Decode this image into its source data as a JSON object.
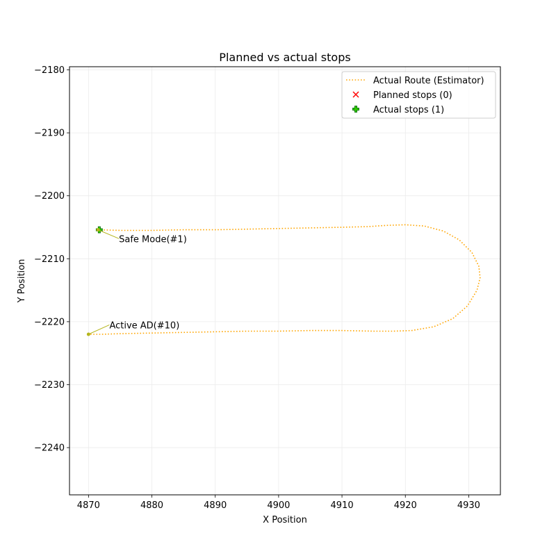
{
  "chart_data": {
    "type": "line",
    "title": "Planned vs actual stops",
    "xlabel": "X Position",
    "ylabel": "Y Position",
    "xlim": [
      4867,
      4935
    ],
    "ylim": [
      -2247.5,
      -2179.5
    ],
    "xticks": [
      4870,
      4880,
      4890,
      4900,
      4910,
      4920,
      4930
    ],
    "yticks": [
      -2180,
      -2190,
      -2200,
      -2210,
      -2220,
      -2230,
      -2240
    ],
    "grid": true,
    "legend_position": "upper right",
    "series": [
      {
        "name": "Actual Route (Estimator)",
        "style": "dotted",
        "color": "#ffa500",
        "points": [
          [
            4871.5,
            -2205.4
          ],
          [
            4875,
            -2205.5
          ],
          [
            4880,
            -2205.5
          ],
          [
            4885,
            -2205.4
          ],
          [
            4890,
            -2205.4
          ],
          [
            4895,
            -2205.3
          ],
          [
            4900,
            -2205.2
          ],
          [
            4905,
            -2205.1
          ],
          [
            4910,
            -2205.0
          ],
          [
            4914,
            -2204.9
          ],
          [
            4917,
            -2204.7
          ],
          [
            4920,
            -2204.6
          ],
          [
            4923,
            -2204.8
          ],
          [
            4926,
            -2205.6
          ],
          [
            4928.5,
            -2207.0
          ],
          [
            4930.5,
            -2209.0
          ],
          [
            4931.6,
            -2211.2
          ],
          [
            4931.8,
            -2213.0
          ],
          [
            4931.3,
            -2215.0
          ],
          [
            4929.8,
            -2217.5
          ],
          [
            4927.5,
            -2219.5
          ],
          [
            4924.5,
            -2220.8
          ],
          [
            4921,
            -2221.4
          ],
          [
            4918,
            -2221.5
          ],
          [
            4915,
            -2221.5
          ],
          [
            4910,
            -2221.4
          ],
          [
            4905,
            -2221.4
          ],
          [
            4900,
            -2221.5
          ],
          [
            4895,
            -2221.5
          ],
          [
            4890,
            -2221.6
          ],
          [
            4885,
            -2221.7
          ],
          [
            4880,
            -2221.8
          ],
          [
            4875,
            -2221.9
          ],
          [
            4872,
            -2222.0
          ],
          [
            4870,
            -2222.0
          ]
        ]
      },
      {
        "name": "Planned stops (0)",
        "marker": "x",
        "color": "#ff0000",
        "points": []
      },
      {
        "name": "Actual stops (1)",
        "marker": "plus",
        "color": "#33cc00",
        "edge_color": "#006400",
        "points": [
          [
            4871.7,
            -2205.4
          ]
        ]
      }
    ],
    "annotations": [
      {
        "text": "Safe Mode(#1)",
        "point": [
          4871.5,
          -2205.4
        ],
        "label_at": [
          4874.8,
          -2206.8
        ]
      },
      {
        "text": "Active AD(#10)",
        "point": [
          4870.0,
          -2222.0
        ],
        "label_at": [
          4873.3,
          -2220.5
        ]
      }
    ],
    "annotation_color": "#b5b51c"
  }
}
